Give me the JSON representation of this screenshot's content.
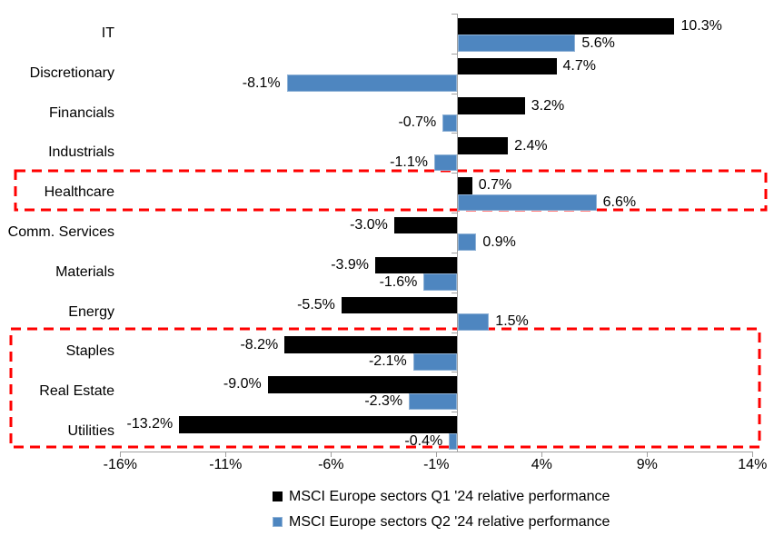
{
  "chart_data": {
    "type": "bar",
    "orientation": "horizontal",
    "title": "",
    "categories": [
      "IT",
      "Discretionary",
      "Financials",
      "Industrials",
      "Healthcare",
      "Comm. Services",
      "Materials",
      "Energy",
      "Staples",
      "Real Estate",
      "Utilities"
    ],
    "series": [
      {
        "name": "MSCI Europe sectors Q1 '24 relative performance",
        "color": "#000000",
        "values": [
          10.3,
          4.7,
          3.2,
          2.4,
          0.7,
          -3.0,
          -3.9,
          -5.5,
          -8.2,
          -9.0,
          -13.2
        ],
        "labels": [
          "10.3%",
          "4.7%",
          "3.2%",
          "2.4%",
          "0.7%",
          "-3.0%",
          "-3.9%",
          "-5.5%",
          "-8.2%",
          "-9.0%",
          "-13.2%"
        ]
      },
      {
        "name": "MSCI Europe sectors Q2 '24 relative performance",
        "color": "#4E86C0",
        "values": [
          5.6,
          -8.1,
          -0.7,
          -1.1,
          6.6,
          0.9,
          -1.6,
          1.5,
          -2.1,
          -2.3,
          -0.4
        ],
        "labels": [
          "5.6%",
          "-8.1%",
          "-0.7%",
          "-1.1%",
          "6.6%",
          "0.9%",
          "-1.6%",
          "1.5%",
          "-2.1%",
          "-2.3%",
          "-0.4%"
        ]
      }
    ],
    "x_axis": {
      "tick_labels": [
        "-16%",
        "-11%",
        "-6%",
        "-1%",
        "4%",
        "9%",
        "14%"
      ],
      "tick_values": [
        -16,
        -11,
        -6,
        -1,
        4,
        9,
        14
      ],
      "range": [
        -16,
        14
      ],
      "unit": "%"
    },
    "legend": {
      "position": "bottom",
      "entries": [
        "MSCI Europe sectors Q1 '24 relative performance",
        "MSCI Europe sectors Q2 '24 relative performance"
      ]
    },
    "grid": false,
    "highlights": [
      {
        "style": "red-dashed-box",
        "sectors": [
          "Healthcare"
        ],
        "row_start": 4,
        "row_end": 4
      },
      {
        "style": "red-dashed-box",
        "sectors": [
          "Staples",
          "Real Estate",
          "Utilities"
        ],
        "row_start": 8,
        "row_end": 10
      }
    ],
    "colors": {
      "q1_bar": "#000000",
      "q2_bar": "#4E86C0",
      "highlight_box": "#FF0000",
      "axis": "#A0A0A0",
      "text": "#000000"
    }
  }
}
